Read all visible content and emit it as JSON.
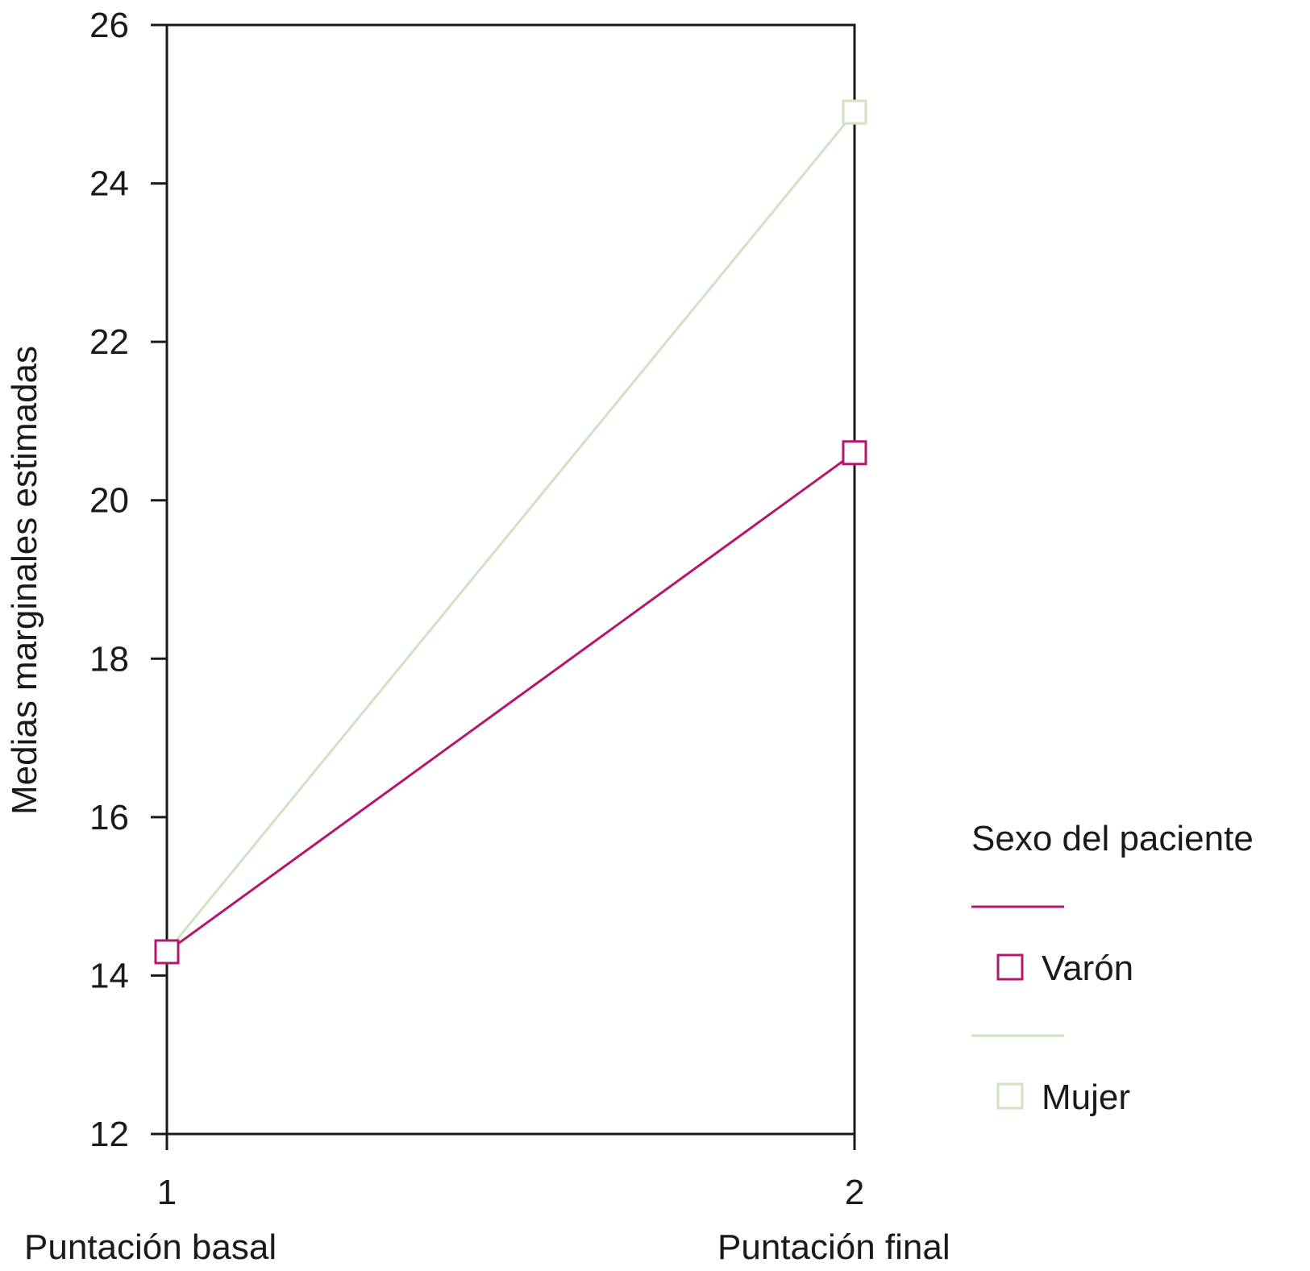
{
  "chart_data": {
    "type": "line",
    "categories": [
      "1",
      "2"
    ],
    "category_labels": [
      "Puntación basal",
      "Puntación final"
    ],
    "ylabel": "Medias marginales estimadas",
    "ylim": [
      12,
      26
    ],
    "yticks": [
      "12",
      "14",
      "16",
      "18",
      "20",
      "22",
      "24",
      "26"
    ],
    "grid": false,
    "legend": {
      "title": "Sexo del paciente",
      "placement": "right"
    },
    "series": [
      {
        "name": "Varón",
        "values": [
          14.3,
          20.6
        ],
        "color": "#b5176e",
        "marker": "square-open"
      },
      {
        "name": "Mujer",
        "values": [
          14.3,
          24.9
        ],
        "color": "#cfe3c0",
        "marker": "square-open"
      }
    ]
  }
}
